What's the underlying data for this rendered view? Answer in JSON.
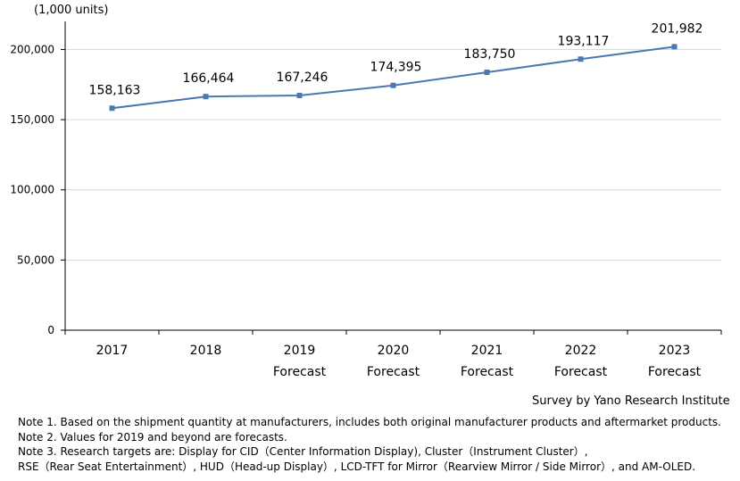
{
  "chart_data": {
    "type": "line",
    "unit_label": "(1,000 units)",
    "categories": [
      [
        "2017"
      ],
      [
        "2018"
      ],
      [
        "2019",
        "Forecast"
      ],
      [
        "2020",
        "Forecast"
      ],
      [
        "2021",
        "Forecast"
      ],
      [
        "2022",
        "Forecast"
      ],
      [
        "2023",
        "Forecast"
      ]
    ],
    "values": [
      158163,
      166464,
      167246,
      174395,
      183750,
      193117,
      201982
    ],
    "value_labels": [
      "158,163",
      "166,464",
      "167,246",
      "174,395",
      "183,750",
      "193,117",
      "201,982"
    ],
    "yticks": [
      0,
      50000,
      100000,
      150000,
      200000
    ],
    "ytick_labels": [
      "0",
      "50,000",
      "100,000",
      "150,000",
      "200,000"
    ],
    "ylim": [
      0,
      220000
    ],
    "grid": true,
    "line_color": "#4a78b0",
    "marker_color": "#4a78b0"
  },
  "source": "Survey by Yano Research Institute",
  "notes": [
    "Note 1. Based on the shipment quantity at manufacturers, includes both original manufacturer products and aftermarket products.",
    "Note 2. Values for 2019 and beyond are forecasts.",
    "Note 3.  Research targets are: Display for CID（Center Information Display), Cluster（Instrument Cluster）,",
    "RSE（Rear Seat Entertainment）, HUD（Head-up Display）, LCD-TFT for Mirror（Rearview Mirror / Side Mirror）, and AM-OLED."
  ]
}
